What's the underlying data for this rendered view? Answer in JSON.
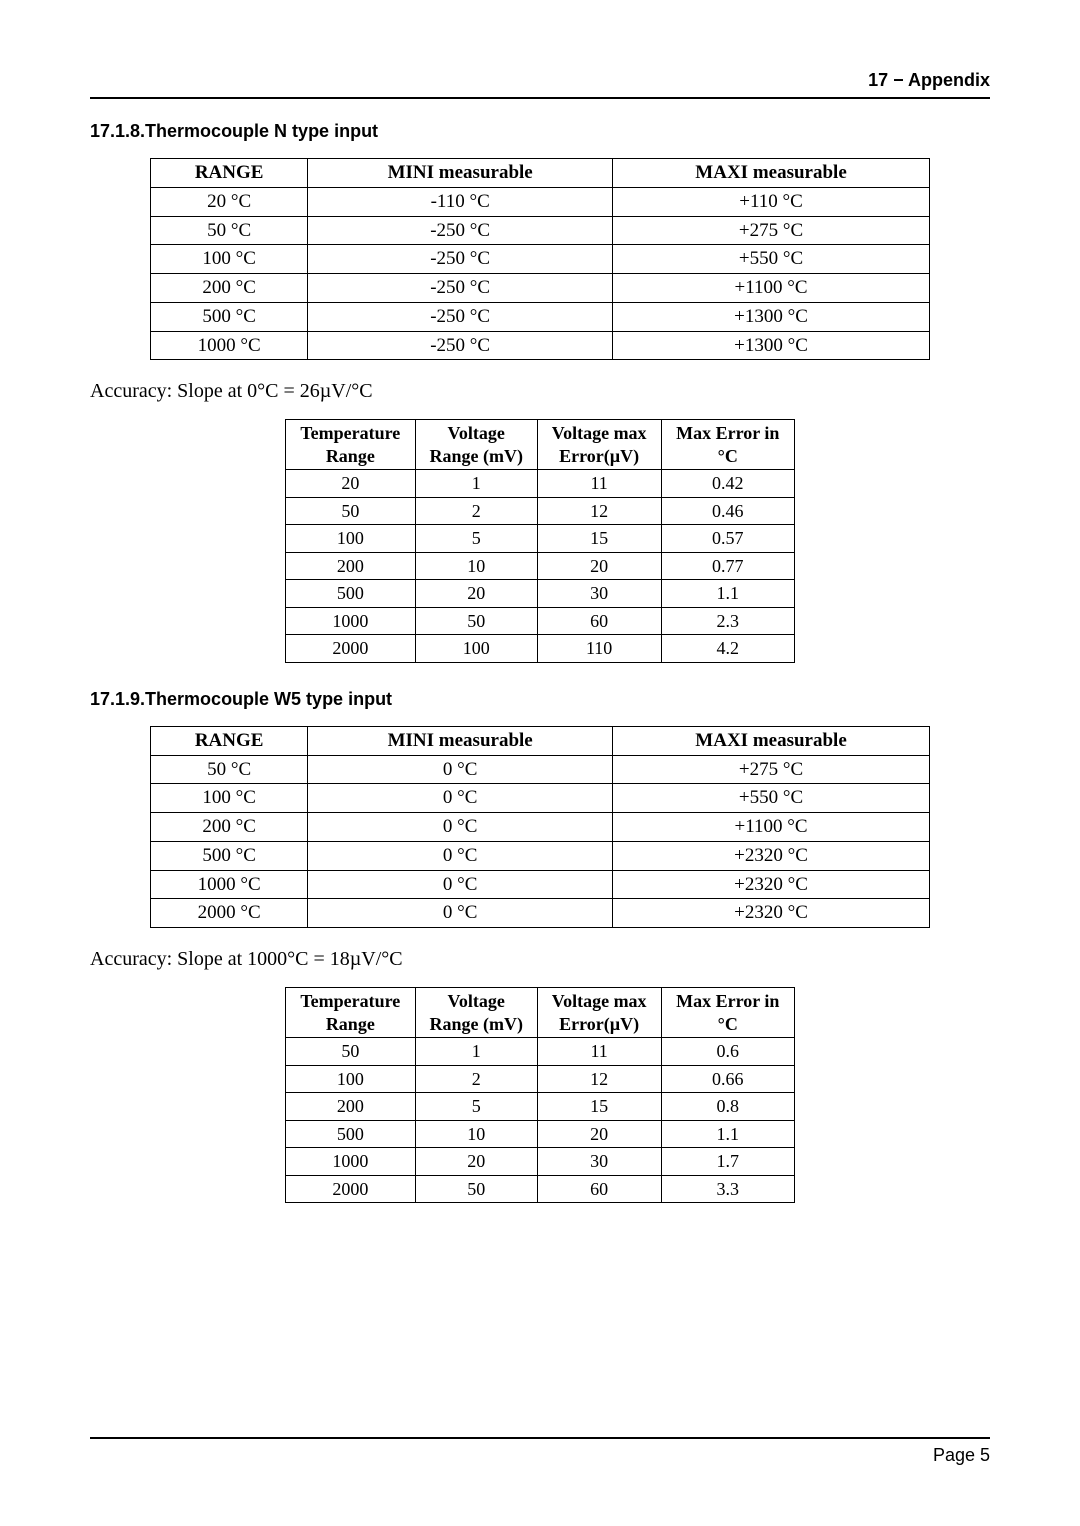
{
  "header": {
    "text": "17 − Appendix"
  },
  "section_n": {
    "title": "17.1.8.Thermocouple N type input",
    "table1": {
      "headers": [
        "RANGE",
        "MINI measurable",
        "MAXI measurable"
      ],
      "rows": [
        [
          "20 °C",
          "-110 °C",
          "+110 °C"
        ],
        [
          "50 °C",
          "-250 °C",
          "+275 °C"
        ],
        [
          "100 °C",
          "-250 °C",
          "+550 °C"
        ],
        [
          "200 °C",
          "-250 °C",
          "+1100 °C"
        ],
        [
          "500 °C",
          "-250 °C",
          "+1300 °C"
        ],
        [
          "1000 °C",
          "-250 °C",
          "+1300 °C"
        ]
      ]
    },
    "accuracy": "Accuracy: Slope at 0°C = 26µV/°C",
    "table2": {
      "headers": [
        "Temperature Range",
        "Voltage Range (mV)",
        "Voltage max Error(µV)",
        "Max Error in °C"
      ],
      "rows": [
        [
          "20",
          "1",
          "11",
          "0.42"
        ],
        [
          "50",
          "2",
          "12",
          "0.46"
        ],
        [
          "100",
          "5",
          "15",
          "0.57"
        ],
        [
          "200",
          "10",
          "20",
          "0.77"
        ],
        [
          "500",
          "20",
          "30",
          "1.1"
        ],
        [
          "1000",
          "50",
          "60",
          "2.3"
        ],
        [
          "2000",
          "100",
          "110",
          "4.2"
        ]
      ]
    }
  },
  "section_w5": {
    "title": "17.1.9.Thermocouple W5 type input",
    "table1": {
      "headers": [
        "RANGE",
        "MINI measurable",
        "MAXI measurable"
      ],
      "rows": [
        [
          "50 °C",
          "0 °C",
          "+275 °C"
        ],
        [
          "100 °C",
          "0 °C",
          "+550 °C"
        ],
        [
          "200 °C",
          "0 °C",
          "+1100 °C"
        ],
        [
          "500 °C",
          "0 °C",
          "+2320 °C"
        ],
        [
          "1000 °C",
          "0 °C",
          "+2320 °C"
        ],
        [
          "2000 °C",
          "0 °C",
          "+2320 °C"
        ]
      ]
    },
    "accuracy": "Accuracy: Slope at 1000°C = 18µV/°C",
    "table2": {
      "headers": [
        "Temperature Range",
        "Voltage Range (mV)",
        "Voltage max Error(µV)",
        "Max Error in °C"
      ],
      "rows": [
        [
          "50",
          "1",
          "11",
          "0.6"
        ],
        [
          "100",
          "2",
          "12",
          "0.66"
        ],
        [
          "200",
          "5",
          "15",
          "0.8"
        ],
        [
          "500",
          "10",
          "20",
          "1.1"
        ],
        [
          "1000",
          "20",
          "30",
          "1.7"
        ],
        [
          "2000",
          "50",
          "60",
          "3.3"
        ]
      ]
    }
  },
  "footer": {
    "text": "Page 5"
  }
}
